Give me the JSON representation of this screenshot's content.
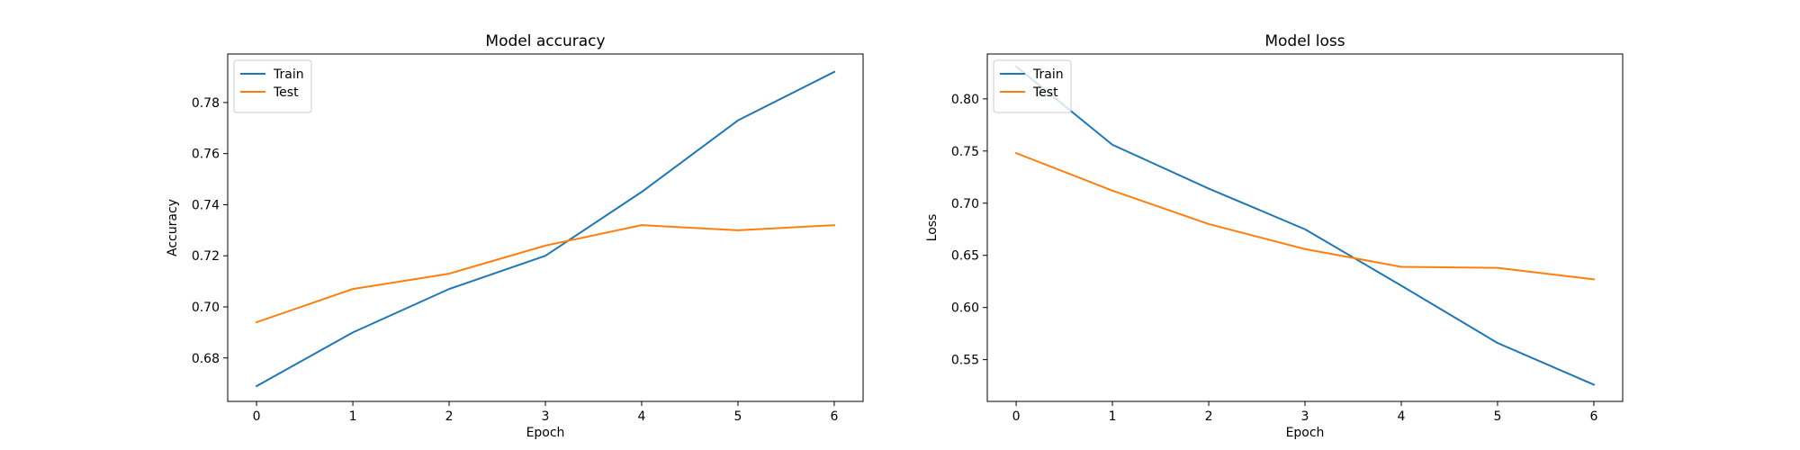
{
  "chart_data": [
    {
      "type": "line",
      "title": "Model accuracy",
      "xlabel": "Epoch",
      "ylabel": "Accuracy",
      "x": [
        0,
        1,
        2,
        3,
        4,
        5,
        6
      ],
      "xticks": [
        0,
        1,
        2,
        3,
        4,
        5,
        6
      ],
      "xlim": [
        -0.3,
        6.3
      ],
      "yticks": [
        0.68,
        0.7,
        0.72,
        0.74,
        0.76,
        0.78
      ],
      "ytick_labels": [
        "0.68",
        "0.70",
        "0.72",
        "0.74",
        "0.76",
        "0.78"
      ],
      "ylim": [
        0.663,
        0.799
      ],
      "grid": false,
      "legend_position": "top-left",
      "series": [
        {
          "name": "Train",
          "color": "#1f77b4",
          "values": [
            0.669,
            0.69,
            0.707,
            0.72,
            0.745,
            0.773,
            0.792
          ]
        },
        {
          "name": "Test",
          "color": "#ff7f0e",
          "values": [
            0.694,
            0.707,
            0.713,
            0.724,
            0.732,
            0.73,
            0.732
          ]
        }
      ]
    },
    {
      "type": "line",
      "title": "Model loss",
      "xlabel": "Epoch",
      "ylabel": "Loss",
      "x": [
        0,
        1,
        2,
        3,
        4,
        5,
        6
      ],
      "xticks": [
        0,
        1,
        2,
        3,
        4,
        5,
        6
      ],
      "xlim": [
        -0.3,
        6.3
      ],
      "yticks": [
        0.55,
        0.6,
        0.65,
        0.7,
        0.75,
        0.8
      ],
      "ytick_labels": [
        "0.55",
        "0.60",
        "0.65",
        "0.70",
        "0.75",
        "0.80"
      ],
      "ylim": [
        0.51,
        0.843
      ],
      "grid": false,
      "legend_position": "top-left",
      "series": [
        {
          "name": "Train",
          "color": "#1f77b4",
          "values": [
            0.831,
            0.756,
            0.714,
            0.675,
            0.621,
            0.566,
            0.526
          ]
        },
        {
          "name": "Test",
          "color": "#ff7f0e",
          "values": [
            0.748,
            0.712,
            0.68,
            0.656,
            0.639,
            0.638,
            0.627
          ]
        }
      ]
    }
  ]
}
